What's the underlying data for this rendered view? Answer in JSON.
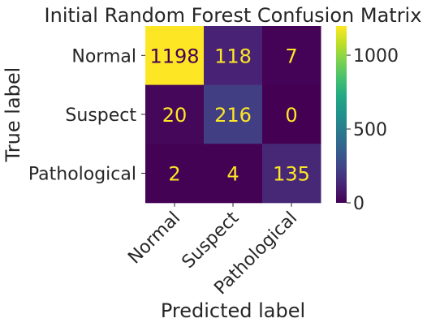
{
  "chart_data": {
    "type": "heatmap",
    "title": "Initial Random Forest Confusion Matrix",
    "xlabel": "Predicted label",
    "ylabel": "True label",
    "x_categories": [
      "Normal",
      "Suspect",
      "Pathological"
    ],
    "y_categories": [
      "Normal",
      "Suspect",
      "Pathological"
    ],
    "values": [
      [
        1198,
        118,
        7
      ],
      [
        20,
        216,
        0
      ],
      [
        2,
        4,
        135
      ]
    ],
    "colormap": "viridis",
    "colorbar": {
      "range": [
        0,
        1198
      ],
      "ticks": [
        0,
        500,
        1000
      ],
      "tick_labels": [
        "0",
        "500",
        "1000"
      ]
    },
    "grid": false,
    "colors": {
      "low_text": "#fde725",
      "high_text": "#440154"
    }
  }
}
